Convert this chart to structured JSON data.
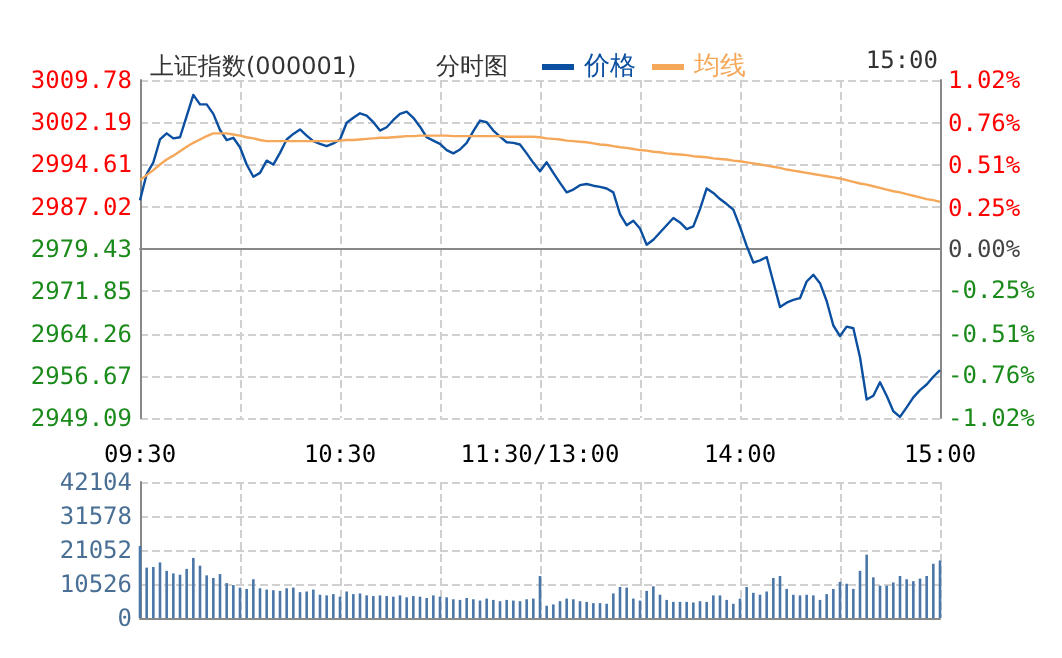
{
  "chart_data": [
    {
      "type": "line",
      "title": "上证指数(000001)",
      "subtitle": "分时图",
      "annotations": [
        "15:00"
      ],
      "legend": "top right",
      "grid": true,
      "categories": [
        "09:30",
        null,
        null,
        null,
        null,
        null,
        null,
        null,
        null,
        null,
        null,
        null,
        null,
        null,
        null,
        null,
        null,
        null,
        null,
        null,
        null,
        null,
        null,
        null,
        null,
        null,
        null,
        null,
        null,
        null,
        "10:30",
        null,
        null,
        null,
        null,
        null,
        null,
        null,
        null,
        null,
        null,
        null,
        null,
        null,
        null,
        null,
        null,
        null,
        null,
        null,
        null,
        null,
        null,
        null,
        null,
        null,
        null,
        null,
        null,
        null,
        "11:30/13:00",
        null,
        null,
        null,
        null,
        null,
        null,
        null,
        null,
        null,
        null,
        null,
        null,
        null,
        null,
        null,
        null,
        null,
        null,
        null,
        null,
        null,
        null,
        null,
        null,
        null,
        null,
        null,
        null,
        null,
        "14:00",
        null,
        null,
        null,
        null,
        null,
        null,
        null,
        null,
        null,
        null,
        null,
        null,
        null,
        null,
        null,
        null,
        null,
        null,
        null,
        null,
        null,
        null,
        null,
        null,
        null,
        null,
        null,
        null,
        null,
        "15:00"
      ],
      "ylim": [
        2949.09,
        3009.78
      ],
      "yticks": [
        2949.09,
        2956.67,
        2964.26,
        2971.85,
        2979.43,
        2987.02,
        2994.61,
        3002.19,
        3009.78
      ],
      "y2lim": [
        -1.02,
        1.02
      ],
      "y2ticks": [
        {
          "value": -1.02,
          "label": "-1.02%"
        },
        {
          "value": -0.76,
          "label": "-0.76%"
        },
        {
          "value": -0.51,
          "label": "-0.51%"
        },
        {
          "value": -0.25,
          "label": "-0.25%"
        },
        {
          "value": 0,
          "label": "0.00%"
        },
        {
          "value": 0.25,
          "label": "0.25%"
        },
        {
          "value": 0.51,
          "label": "0.51%"
        },
        {
          "value": 0.76,
          "label": "0.76%"
        },
        {
          "value": 1.02,
          "label": "1.02%"
        }
      ],
      "series": [
        {
          "name": "价格",
          "color": "#0b4fa0",
          "values": [
            2988.2,
            2992.9,
            2995.0,
            2999.1,
            3000.2,
            2999.3,
            2999.5,
            3003.3,
            3007.1,
            3005.4,
            3005.4,
            3003.7,
            3000.8,
            2999.0,
            2999.4,
            2997.7,
            2994.6,
            2992.4,
            2993.1,
            2995.3,
            2994.6,
            2996.7,
            2999.1,
            3000.1,
            3000.9,
            2999.8,
            2998.8,
            2998.3,
            2997.9,
            2998.4,
            2999.1,
            3002.1,
            3003.0,
            3003.8,
            3003.4,
            3002.2,
            3000.7,
            3001.3,
            3002.6,
            3003.7,
            3004.1,
            3003.0,
            3001.4,
            2999.5,
            2998.9,
            2998.3,
            2997.2,
            2996.6,
            2997.3,
            2998.5,
            3000.6,
            3002.5,
            3002.2,
            3000.7,
            2999.6,
            2998.6,
            2998.5,
            2998.2,
            2996.6,
            2994.9,
            2993.4,
            2995.0,
            2993.1,
            2991.3,
            2989.6,
            2990.1,
            2990.9,
            2991.1,
            2990.8,
            2990.6,
            2990.3,
            2989.6,
            2985.7,
            2983.7,
            2984.5,
            2983.1,
            2980.2,
            2981.1,
            2982.4,
            2983.7,
            2985.0,
            2984.2,
            2983.0,
            2983.5,
            2986.6,
            2990.3,
            2989.5,
            2988.4,
            2987.5,
            2986.5,
            2983.4,
            2980.0,
            2977.0,
            2977.4,
            2978.0,
            2973.5,
            2969.0,
            2969.8,
            2970.3,
            2970.6,
            2973.6,
            2974.8,
            2973.3,
            2970.1,
            2965.7,
            2963.8,
            2965.5,
            2965.2,
            2960.0,
            2952.4,
            2953.1,
            2955.5,
            2953.1,
            2950.3,
            2949.3,
            2951.0,
            2952.8,
            2954.1,
            2955.1,
            2956.5,
            2957.7
          ]
        },
        {
          "name": "均线",
          "color": "#f5a85a",
          "values": [
            2991.8,
            2992.7,
            2993.6,
            2994.6,
            2995.5,
            2996.2,
            2997.0,
            2997.8,
            2998.5,
            2999.1,
            2999.7,
            3000.2,
            3000.2,
            3000.2,
            3000.0,
            2999.8,
            2999.5,
            2999.3,
            2999.0,
            2998.8,
            2998.8,
            2998.8,
            2998.8,
            2998.8,
            2998.8,
            2998.8,
            2998.8,
            2998.8,
            2998.8,
            2998.8,
            2998.9,
            2999.0,
            2999.0,
            2999.1,
            2999.2,
            2999.3,
            2999.4,
            2999.4,
            2999.5,
            2999.6,
            2999.7,
            2999.7,
            2999.8,
            2999.8,
            2999.8,
            2999.8,
            2999.8,
            2999.7,
            2999.7,
            2999.7,
            2999.7,
            2999.7,
            2999.7,
            2999.7,
            2999.7,
            2999.6,
            2999.6,
            2999.6,
            2999.6,
            2999.6,
            2999.5,
            2999.3,
            2999.2,
            2999.1,
            2998.9,
            2998.8,
            2998.7,
            2998.6,
            2998.4,
            2998.2,
            2998.1,
            2997.9,
            2997.7,
            2997.6,
            2997.4,
            2997.2,
            2997.1,
            2996.9,
            2996.8,
            2996.6,
            2996.5,
            2996.4,
            2996.3,
            2996.1,
            2996.0,
            2995.9,
            2995.7,
            2995.6,
            2995.5,
            2995.3,
            2995.2,
            2995.0,
            2994.8,
            2994.6,
            2994.4,
            2994.2,
            2994.0,
            2993.7,
            2993.5,
            2993.3,
            2993.1,
            2992.9,
            2992.7,
            2992.5,
            2992.3,
            2992.1,
            2991.8,
            2991.5,
            2991.2,
            2991.0,
            2990.7,
            2990.4,
            2990.1,
            2989.8,
            2989.6,
            2989.3,
            2989.0,
            2988.7,
            2988.4,
            2988.2,
            2987.9
          ]
        }
      ]
    },
    {
      "type": "bar",
      "grid": true,
      "tick_labels": "y",
      "categories": [
        null,
        null,
        null,
        null,
        null,
        null,
        null,
        null,
        null,
        null,
        null,
        null,
        null,
        null,
        null,
        null,
        null,
        null,
        null,
        null,
        null,
        null,
        null,
        null,
        null,
        null,
        null,
        null,
        null,
        null,
        null,
        null,
        null,
        null,
        null,
        null,
        null,
        null,
        null,
        null,
        null,
        null,
        null,
        null,
        null,
        null,
        null,
        null,
        null,
        null,
        null,
        null,
        null,
        null,
        null,
        null,
        null,
        null,
        null,
        null,
        null,
        null,
        null,
        null,
        null,
        null,
        null,
        null,
        null,
        null,
        null,
        null,
        null,
        null,
        null,
        null,
        null,
        null,
        null,
        null,
        null,
        null,
        null,
        null,
        null,
        null,
        null,
        null,
        null,
        null,
        null,
        null,
        null,
        null,
        null,
        null,
        null,
        null,
        null,
        null,
        null,
        null,
        null,
        null,
        null,
        null,
        null,
        null,
        null,
        null,
        null,
        null,
        null,
        null,
        null,
        null,
        null,
        null,
        null,
        null,
        null
      ],
      "ylim": [
        0,
        42104
      ],
      "yticks": [
        0,
        10526,
        21052,
        31578,
        42104
      ],
      "series": [
        {
          "color": "#4a76a8",
          "values": [
            22300,
            15600,
            15800,
            17200,
            14600,
            13800,
            13400,
            15200,
            18600,
            16200,
            13200,
            12400,
            13600,
            10800,
            10200,
            9400,
            9000,
            12000,
            9200,
            8800,
            8600,
            8400,
            9200,
            9400,
            8000,
            8200,
            8800,
            7200,
            7000,
            7400,
            6600,
            8200,
            7400,
            7600,
            7000,
            6800,
            7000,
            6800,
            6600,
            7000,
            6400,
            6800,
            6600,
            6200,
            7000,
            6600,
            6400,
            5800,
            5600,
            6200,
            5800,
            5400,
            6000,
            5600,
            5200,
            5600,
            5400,
            5200,
            5800,
            6000,
            13000,
            3800,
            4200,
            5200,
            6000,
            5800,
            5200,
            5000,
            4600,
            4600,
            4400,
            7600,
            9600,
            9400,
            6000,
            5400,
            8400,
            9800,
            7200,
            5600,
            5000,
            5000,
            5000,
            4800,
            5200,
            5000,
            7000,
            7000,
            5600,
            4400,
            6000,
            9600,
            7800,
            7200,
            8200,
            12400,
            13000,
            9000,
            7200,
            7000,
            7200,
            7000,
            5600,
            7400,
            9000,
            11200,
            10600,
            9000,
            14600,
            19600,
            12600,
            10000,
            10000,
            11000,
            13000,
            12000,
            11400,
            12200,
            13000,
            16800,
            17800
          ]
        }
      ]
    }
  ]
}
